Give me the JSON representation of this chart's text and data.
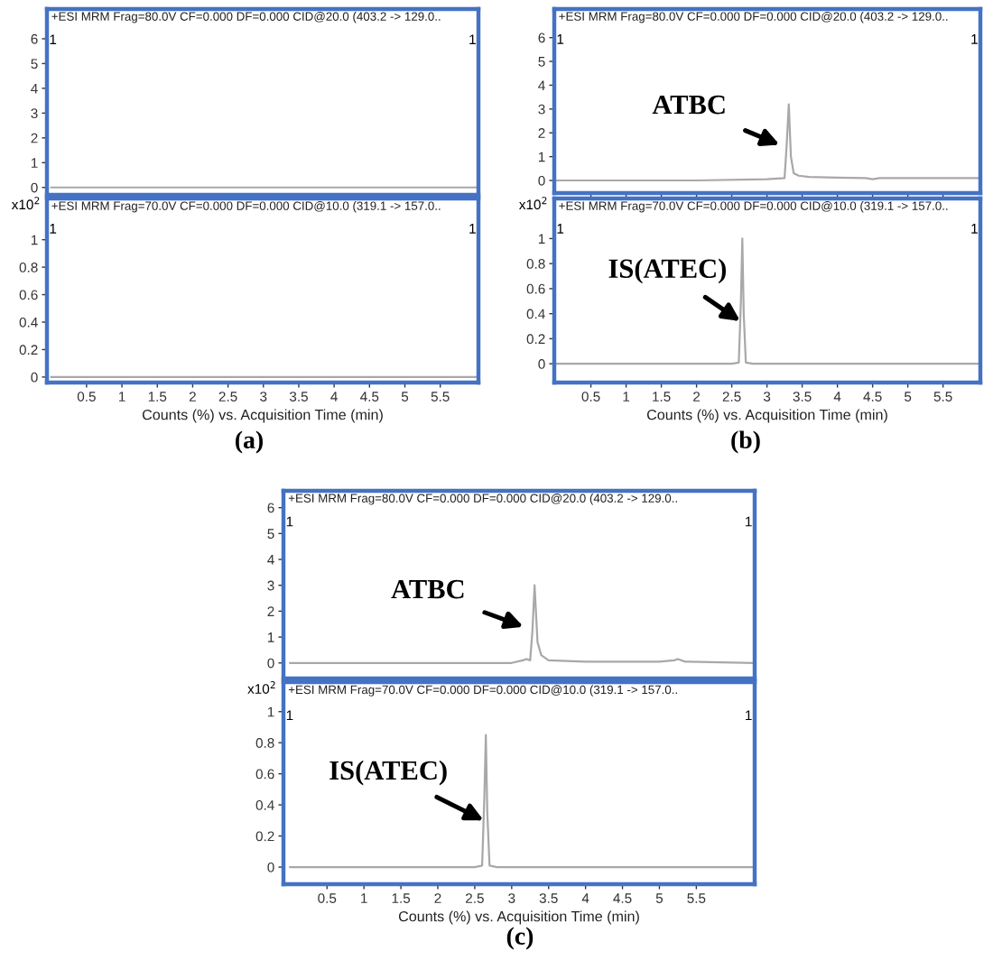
{
  "chart_data": [
    {
      "type": "line",
      "title": "+ESI MRM Frag=80.0V CF=0.000 DF=0.000 CID@20.0 (403.2 -> 129.0..",
      "x": [
        0,
        6.04
      ],
      "values": [
        0,
        0
      ],
      "color": "#a8a8a8",
      "xlim": [
        -0.06,
        6.04
      ],
      "ylim": [
        -0.3,
        7.2
      ],
      "xticks": [
        0.5,
        1,
        1.5,
        2,
        2.5,
        3,
        3.5,
        4,
        4.5,
        5,
        5.5
      ],
      "yticks": [
        0,
        1,
        2,
        3,
        4,
        5,
        6
      ],
      "tick_labels": "y",
      "grid": false,
      "marker": "none",
      "line_style": "solid",
      "annotations": [
        "1",
        "1"
      ]
    },
    {
      "type": "line",
      "title": "+ESI MRM Frag=70.0V CF=0.000 DF=0.000 CID@10.0 (319.1 -> 157.0..",
      "xlabel": "Counts (%) vs. Acquisition Time (min)",
      "x": [
        0,
        6.04
      ],
      "values": [
        0,
        0
      ],
      "color": "#a8a8a8",
      "xlim": [
        -0.06,
        6.04
      ],
      "ylim": [
        -0.04,
        1.3
      ],
      "xticks": [
        0.5,
        1,
        1.5,
        2,
        2.5,
        3,
        3.5,
        4,
        4.5,
        5,
        5.5
      ],
      "yticks": [
        0,
        {
          "value": 0.2,
          "label": "0.2"
        },
        {
          "value": 0.4,
          "label": "0.4"
        },
        {
          "value": 0.6,
          "label": "0.6"
        },
        {
          "value": 0.8,
          "label": "0.8"
        },
        1
      ],
      "grid": false,
      "marker": "none",
      "line_style": "solid",
      "annotations": [
        "1",
        "1",
        "x10$^{2}$",
        "(a)"
      ]
    },
    {
      "type": "line",
      "title": "+ESI MRM Frag=80.0V CF=0.000 DF=0.000 CID@20.0 (403.2 -> 129.0..",
      "x": [
        0,
        1,
        2,
        3,
        3.25,
        3.28,
        3.31,
        3.34,
        3.38,
        3.45,
        3.6,
        4,
        4.4,
        4.5,
        4.6,
        5,
        6.03
      ],
      "values": [
        0,
        0,
        0,
        0.05,
        0.1,
        1.5,
        3.2,
        1.0,
        0.3,
        0.2,
        0.15,
        0.12,
        0.1,
        0.05,
        0.1,
        0.1,
        0.1
      ],
      "color": "#a8a8a8",
      "xlim": [
        -0.02,
        6.03
      ],
      "ylim": [
        -0.53,
        7.2
      ],
      "xticks": [
        0.5,
        1,
        1.5,
        2,
        2.5,
        3,
        3.5,
        4,
        4.5,
        5,
        5.5
      ],
      "yticks": [
        0,
        1,
        2,
        3,
        4,
        5,
        6
      ],
      "tick_labels": "y",
      "grid": false,
      "marker": "none",
      "line_style": "solid",
      "annotations": [
        "1",
        "1",
        {
          "text": "ATBC",
          "x": 3.18,
          "y": 1.5
        }
      ]
    },
    {
      "type": "line",
      "title": "+ESI MRM Frag=70.0V CF=0.000 DF=0.000 CID@10.0 (319.1 -> 157.0..",
      "xlabel": "Counts (%) vs. Acquisition Time (min)",
      "x": [
        0,
        2.5,
        2.6,
        2.63,
        2.65,
        2.67,
        2.7,
        2.8,
        6.03
      ],
      "values": [
        0,
        0,
        0.01,
        0.5,
        1.0,
        0.4,
        0.01,
        0,
        0
      ],
      "color": "#a8a8a8",
      "xlim": [
        -0.02,
        6.03
      ],
      "ylim": [
        -0.15,
        1.32
      ],
      "xticks": [
        0.5,
        1,
        1.5,
        2,
        2.5,
        3,
        3.5,
        4,
        4.5,
        5,
        5.5
      ],
      "yticks": [
        0,
        {
          "value": 0.2,
          "label": "0.2"
        },
        {
          "value": 0.4,
          "label": "0.4"
        },
        {
          "value": 0.6,
          "label": "0.6"
        },
        {
          "value": 0.8,
          "label": "0.8"
        },
        1
      ],
      "grid": false,
      "marker": "none",
      "line_style": "solid",
      "annotations": [
        "1",
        "1",
        "x10$^{2}$",
        "(b)",
        {
          "text": "IS(ATEC)",
          "x": 2.62,
          "y": 0.34
        }
      ]
    },
    {
      "type": "line",
      "title": "+ESI MRM Frag=80.0V CF=0.000 DF=0.000 CID@20.0 (403.2 -> 129.0..",
      "x": [
        0,
        3.0,
        3.15,
        3.2,
        3.25,
        3.28,
        3.31,
        3.35,
        3.4,
        3.5,
        4,
        5,
        5.2,
        5.25,
        5.35,
        6.29
      ],
      "values": [
        0,
        0,
        0.1,
        0.15,
        0.1,
        1.2,
        3.0,
        0.8,
        0.3,
        0.1,
        0.05,
        0.05,
        0.1,
        0.15,
        0.05,
        0
      ],
      "color": "#a8a8a8",
      "xlim": [
        -0.09,
        6.29
      ],
      "ylim": [
        -0.6,
        6.65
      ],
      "xticks": [
        0.5,
        1,
        1.5,
        2,
        2.5,
        3,
        3.5,
        4,
        4.5,
        5,
        5.5
      ],
      "yticks": [
        0,
        1,
        2,
        3,
        4,
        5,
        6
      ],
      "tick_labels": "y",
      "grid": false,
      "marker": "none",
      "line_style": "solid",
      "annotations": [
        "1",
        "1",
        {
          "text": "ATBC",
          "x": 3.16,
          "y": 1.4
        }
      ]
    },
    {
      "type": "line",
      "title": "+ESI MRM Frag=70.0V CF=0.000 DF=0.000 CID@10.0 (319.1 -> 157.0..",
      "xlabel": "Counts (%) vs. Acquisition Time (min)",
      "x": [
        0,
        2.5,
        2.6,
        2.63,
        2.65,
        2.67,
        2.7,
        2.8,
        6.29
      ],
      "values": [
        0,
        0,
        0.01,
        0.45,
        0.85,
        0.35,
        0.01,
        0,
        0
      ],
      "color": "#a8a8a8",
      "xlim": [
        -0.09,
        6.29
      ],
      "ylim": [
        -0.11,
        1.19
      ],
      "xticks": [
        0.5,
        1,
        1.5,
        2,
        2.5,
        3,
        3.5,
        4,
        4.5,
        5,
        5.5
      ],
      "yticks": [
        0,
        {
          "value": 0.2,
          "label": "0.2"
        },
        {
          "value": 0.4,
          "label": "0.4"
        },
        {
          "value": 0.6,
          "label": "0.6"
        },
        {
          "value": 0.8,
          "label": "0.8"
        },
        1
      ],
      "grid": false,
      "marker": "none",
      "line_style": "solid",
      "annotations": [
        "1",
        "1",
        "x10$^{2}$",
        "(c)",
        {
          "text": "IS(ATEC)",
          "x": 2.62,
          "y": 0.3
        }
      ]
    }
  ]
}
